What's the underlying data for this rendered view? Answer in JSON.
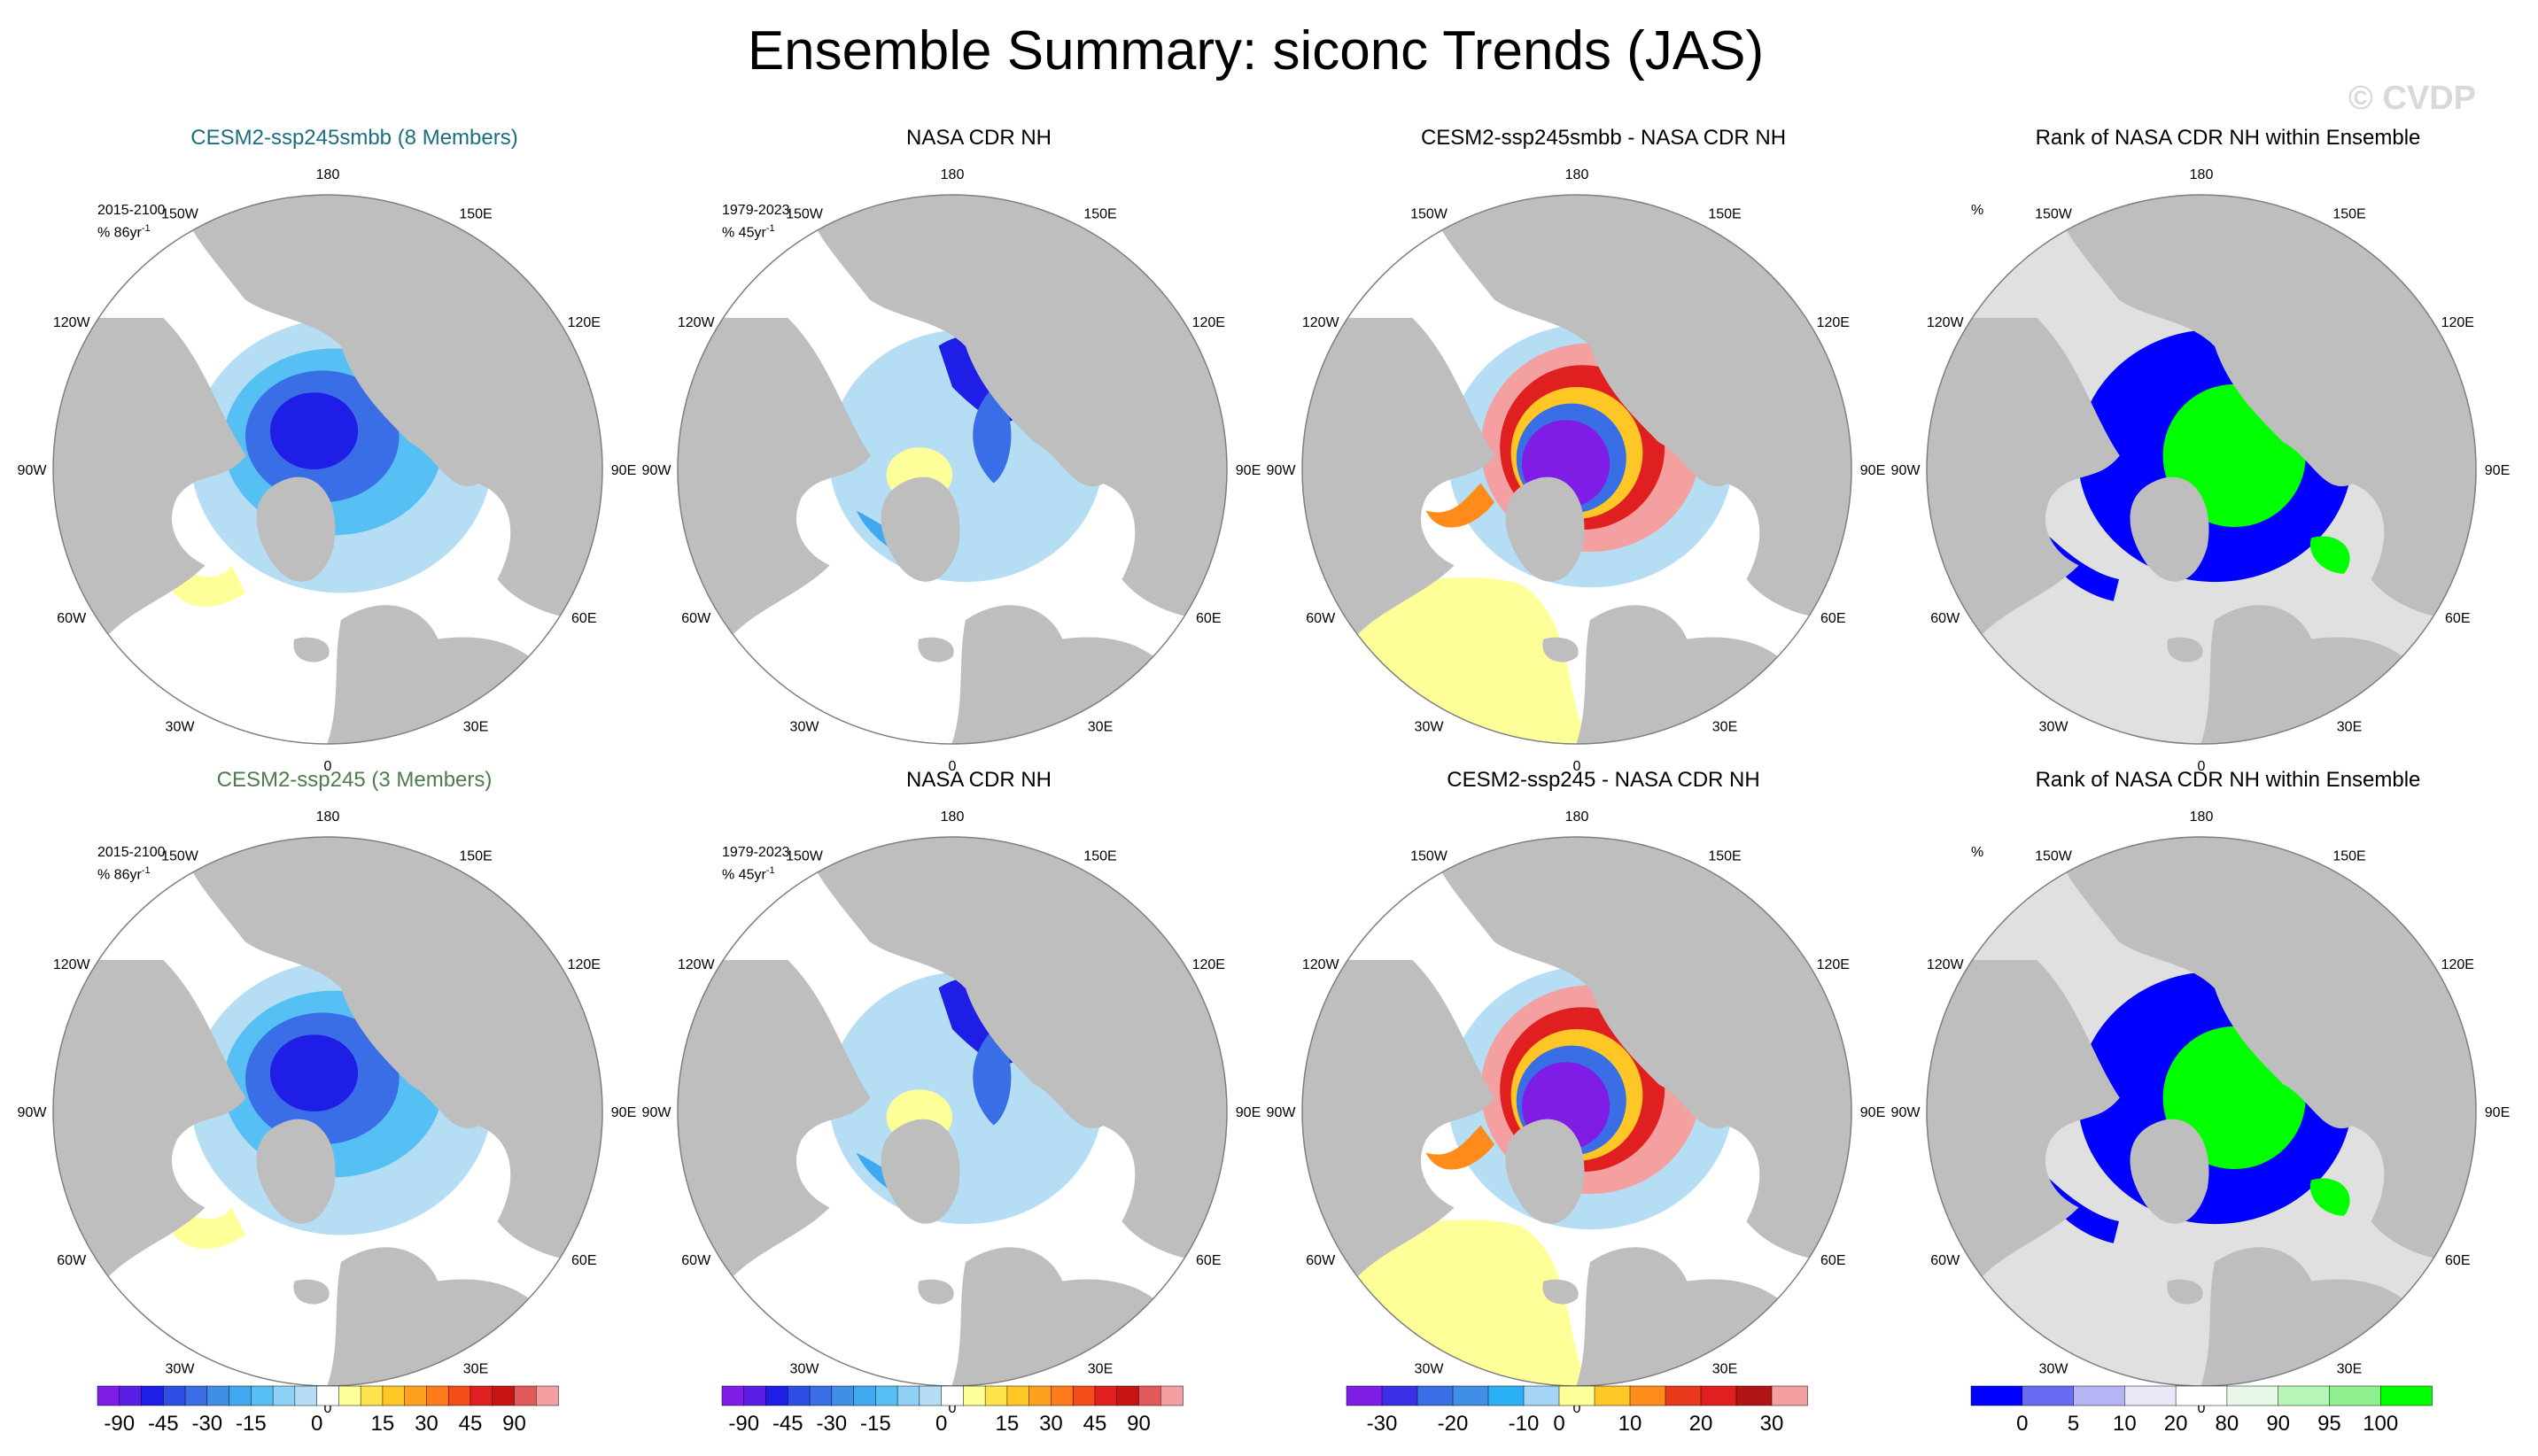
{
  "title": "Ensemble Summary: siconc Trends (JAS)",
  "watermark": "© CVDP",
  "lon_labels": [
    "180",
    "150E",
    "120E",
    "90E",
    "60E",
    "30E",
    "0",
    "30W",
    "60W",
    "90W",
    "120W",
    "150W"
  ],
  "colors": {
    "land": "#bebebe",
    "ocean": "#ffffff",
    "outline": "#7f7f7f",
    "model_title_row1": "#1b6e80",
    "model_title_row2": "#4d7c4d"
  },
  "chart_data": [
    {
      "type": "heatmap",
      "panel": "r1c1",
      "title": "CESM2-ssp245smbb (8 Members)",
      "period": "2015-2100",
      "units_prefix": "% 86yr",
      "units_exp": "-1",
      "field": "model-trend",
      "row": 0,
      "col": 0
    },
    {
      "type": "heatmap",
      "panel": "r1c2",
      "title": "NASA CDR NH",
      "period": "1979-2023",
      "units_prefix": "% 45yr",
      "units_exp": "-1",
      "field": "obs-trend",
      "row": 0,
      "col": 1
    },
    {
      "type": "heatmap",
      "panel": "r1c3",
      "title": "CESM2-ssp245smbb - NASA CDR NH",
      "period": "",
      "units_prefix": "",
      "units_exp": "",
      "field": "difference",
      "row": 0,
      "col": 2
    },
    {
      "type": "heatmap",
      "panel": "r1c4",
      "title": "Rank of NASA CDR NH within Ensemble",
      "period": "",
      "units_prefix": "%",
      "units_exp": "",
      "field": "rank",
      "row": 0,
      "col": 3
    },
    {
      "type": "heatmap",
      "panel": "r2c1",
      "title": "CESM2-ssp245 (3 Members)",
      "period": "2015-2100",
      "units_prefix": "% 86yr",
      "units_exp": "-1",
      "field": "model-trend",
      "row": 1,
      "col": 0
    },
    {
      "type": "heatmap",
      "panel": "r2c2",
      "title": "NASA CDR NH",
      "period": "1979-2023",
      "units_prefix": "% 45yr",
      "units_exp": "-1",
      "field": "obs-trend",
      "row": 1,
      "col": 1
    },
    {
      "type": "heatmap",
      "panel": "r2c3",
      "title": "CESM2-ssp245 - NASA CDR NH",
      "period": "",
      "units_prefix": "",
      "units_exp": "",
      "field": "difference",
      "row": 1,
      "col": 2
    },
    {
      "type": "heatmap",
      "panel": "r2c4",
      "title": "Rank of NASA CDR NH within Ensemble",
      "period": "",
      "units_prefix": "%",
      "units_exp": "",
      "field": "rank",
      "row": 1,
      "col": 3
    }
  ],
  "colorbars": [
    {
      "name": "trend-colorbar-1",
      "colors": [
        "#7f1de6",
        "#5a1de6",
        "#1e1ee6",
        "#2e4ee6",
        "#3a6ee6",
        "#3f8fe6",
        "#3fa8f0",
        "#56c0f5",
        "#8fd0f5",
        "#b5def5",
        "#ffffff",
        "#ffff99",
        "#ffe34d",
        "#ffc726",
        "#ffa020",
        "#ff7a1a",
        "#f44d1a",
        "#e02020",
        "#c81414",
        "#e25a5a",
        "#f5a0a0"
      ],
      "ticks": [
        "-90",
        "-45",
        "-30",
        "-15",
        "0",
        "15",
        "30",
        "45",
        "90"
      ],
      "tick_index": [
        1,
        3,
        5,
        7,
        10,
        13,
        15,
        17,
        19
      ]
    },
    {
      "name": "trend-colorbar-2",
      "colors": [
        "#7f1de6",
        "#5a1de6",
        "#1e1ee6",
        "#2e4ee6",
        "#3a6ee6",
        "#3f8fe6",
        "#3fa8f0",
        "#56c0f5",
        "#8fd0f5",
        "#b5def5",
        "#ffffff",
        "#ffff99",
        "#ffe34d",
        "#ffc726",
        "#ffa020",
        "#ff7a1a",
        "#f44d1a",
        "#e02020",
        "#c81414",
        "#e25a5a",
        "#f5a0a0"
      ],
      "ticks": [
        "-90",
        "-45",
        "-30",
        "-15",
        "0",
        "15",
        "30",
        "45",
        "90"
      ],
      "tick_index": [
        1,
        3,
        5,
        7,
        10,
        13,
        15,
        17,
        19
      ]
    },
    {
      "name": "difference-colorbar",
      "colors": [
        "#7f1de6",
        "#3a2ee6",
        "#3a6ee6",
        "#3f8fe6",
        "#2ab0f5",
        "#a5d5f5",
        "#ffff99",
        "#ffc726",
        "#ff8c1a",
        "#e83a1a",
        "#e02020",
        "#b01414",
        "#f5a0a0"
      ],
      "ticks": [
        "-30",
        "-20",
        "-10",
        "0",
        "10",
        "20",
        "30"
      ],
      "tick_index": [
        1,
        3,
        5,
        6,
        8,
        10,
        12
      ]
    },
    {
      "name": "rank-colorbar",
      "colors": [
        "#0000ff",
        "#6a6af5",
        "#b5b5f5",
        "#e8e8f8",
        "#ffffff",
        "#e8f8e8",
        "#b5f5b5",
        "#8ff08f",
        "#00ff00"
      ],
      "ticks": [
        "0",
        "5",
        "10",
        "20",
        "80",
        "90",
        "95",
        "100"
      ],
      "tick_index": [
        1,
        2,
        3,
        4,
        5,
        6,
        7,
        8
      ]
    }
  ]
}
